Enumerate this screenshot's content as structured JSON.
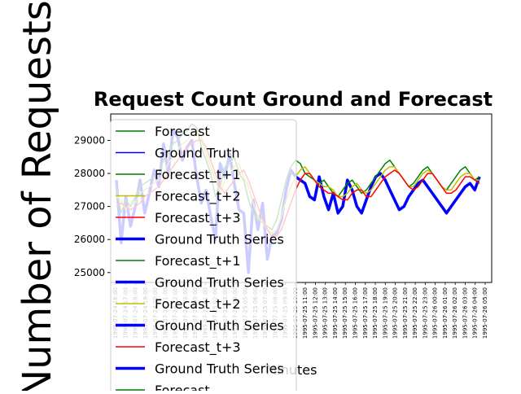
{
  "chart_data": {
    "type": "line",
    "title": "Request Count Ground and Forecast",
    "xlabel": "Minutes",
    "ylabel": "Number of Requests",
    "ylim": [
      24700,
      29800
    ],
    "y_ticks": [
      25000,
      26000,
      27000,
      28000,
      29000
    ],
    "x_tick_labels_note": "dense rotated timestamp labels",
    "x_tick_labels": [
      "1995-07-24 16:00",
      "1995-07-24 17:00",
      "1995-07-24 18:00",
      "1995-07-24 19:00",
      "1995-07-24 20:00",
      "1995-07-24 21:00",
      "1995-07-24 22:00",
      "1995-07-24 23:00",
      "1995-07-25 00:00",
      "1995-07-25 01:00",
      "1995-07-25 02:00",
      "1995-07-25 03:00",
      "1995-07-25 04:00",
      "1995-07-25 05:00",
      "1995-07-25 06:00",
      "1995-07-25 07:00",
      "1995-07-25 08:00",
      "1995-07-25 09:00",
      "1995-07-25 10:00",
      "1995-07-25 11:00",
      "1995-07-25 12:00",
      "1995-07-25 13:00",
      "1995-07-25 14:00",
      "1995-07-25 15:00",
      "1995-07-25 16:00",
      "1995-07-25 17:00",
      "1995-07-25 18:00",
      "1995-07-25 19:00",
      "1995-07-25 20:00",
      "1995-07-25 21:00",
      "1995-07-25 22:00",
      "1995-07-25 23:00",
      "1995-07-26 00:00",
      "1995-07-26 01:00",
      "1995-07-26 02:00",
      "1995-07-26 03:00",
      "1995-07-26 04:00",
      "1995-07-26 05:00"
    ],
    "grid": false,
    "legend_placement": "upper-left, overflowing",
    "legend": [
      {
        "label": "Forecast",
        "color": "#008000",
        "width": 1.5
      },
      {
        "label": "Ground Truth",
        "color": "#0000ff",
        "width": 1.5
      },
      {
        "label": "Forecast_t+1",
        "color": "#008000",
        "width": 1.5
      },
      {
        "label": "Forecast_t+2",
        "color": "#bfbf00",
        "width": 1.5
      },
      {
        "label": "Forecast_t+3",
        "color": "#ff0000",
        "width": 1.5
      },
      {
        "label": "Ground Truth Series",
        "color": "#0000ff",
        "width": 3.5
      },
      {
        "label": "Forecast_t+1",
        "color": "#008000",
        "width": 1.5
      },
      {
        "label": "Ground Truth Series",
        "color": "#0000ff",
        "width": 3.5
      },
      {
        "label": "Forecast_t+2",
        "color": "#bfbf00",
        "width": 1.5
      },
      {
        "label": "Ground Truth Series",
        "color": "#0000ff",
        "width": 3.5
      },
      {
        "label": "Forecast_t+3",
        "color": "#ff0000",
        "width": 1.5
      },
      {
        "label": "Ground Truth Series",
        "color": "#0000ff",
        "width": 3.5
      },
      {
        "label": "Forecast",
        "color": "#008000",
        "width": 1.5
      }
    ],
    "x": [
      0,
      1,
      2,
      3,
      4,
      5,
      6,
      7,
      8,
      9,
      10,
      11,
      12,
      13,
      14,
      15,
      16,
      17,
      18,
      19,
      20,
      21,
      22,
      23,
      24,
      25,
      26,
      27,
      28,
      29,
      30,
      31,
      32,
      33,
      34,
      35,
      36,
      37,
      38,
      39,
      40,
      41,
      42,
      43,
      44,
      45,
      46,
      47,
      48,
      49,
      50,
      51,
      52,
      53,
      54,
      55,
      56,
      57,
      58,
      59,
      60,
      61,
      62,
      63,
      64,
      65,
      66,
      67,
      68,
      69,
      70,
      71,
      72,
      73,
      74,
      75,
      76,
      77
    ],
    "series": [
      {
        "name": "Ground Truth Series",
        "color": "#0000ff",
        "width": 3.5,
        "values": [
          27800,
          25900,
          27300,
          26400,
          27000,
          27800,
          26800,
          27400,
          28100,
          27600,
          28900,
          28000,
          29300,
          29100,
          28400,
          28800,
          29000,
          27900,
          27100,
          27500,
          26700,
          26000,
          28300,
          27900,
          28600,
          27700,
          26900,
          26800,
          25000,
          27200,
          26300,
          27100,
          25400,
          26100,
          26200,
          26600,
          27500,
          28100,
          27900,
          27800,
          27700,
          27300,
          27200,
          27900,
          27300,
          26900,
          27400,
          26800,
          27000,
          27800,
          27500,
          27000,
          26800,
          27200,
          27600,
          27900,
          28000,
          27800,
          27500,
          27200,
          26900,
          27000,
          27300,
          27500,
          27700,
          27800,
          27600,
          27400,
          27200,
          27000,
          26800,
          27000,
          27200,
          27400,
          27600,
          27700,
          27500,
          27900
        ]
      },
      {
        "name": "Forecast_t+1",
        "color": "#008000",
        "width": 1.5,
        "values": [
          27600,
          26800,
          27200,
          27000,
          27300,
          27600,
          27700,
          27800,
          27900,
          28000,
          28400,
          28600,
          28900,
          29000,
          29200,
          29300,
          29500,
          29400,
          28800,
          28400,
          28000,
          27300,
          27600,
          28200,
          28300,
          28500,
          28000,
          27800,
          27200,
          26800,
          26600,
          26500,
          26400,
          26300,
          26600,
          27200,
          27800,
          28200,
          28400,
          28300,
          28000,
          27900,
          27800,
          27700,
          27800,
          27600,
          27400,
          27300,
          27500,
          27700,
          27800,
          27600,
          27400,
          27500,
          27700,
          27900,
          28100,
          28300,
          28400,
          28200,
          28000,
          27800,
          27600,
          27700,
          27900,
          28100,
          28200,
          28000,
          27800,
          27600,
          27500,
          27700,
          27900,
          28100,
          28200,
          28000,
          27800,
          27900
        ]
      },
      {
        "name": "Forecast_t+2",
        "color": "#bfbf00",
        "width": 1.5,
        "values": [
          27300,
          27200,
          26900,
          27100,
          27100,
          27400,
          27500,
          27600,
          27700,
          27800,
          28000,
          28300,
          28500,
          28700,
          28900,
          29000,
          29200,
          29300,
          29100,
          28600,
          28200,
          27800,
          27400,
          27800,
          28000,
          28200,
          28300,
          27900,
          27600,
          27100,
          26700,
          26500,
          26300,
          26200,
          26300,
          26700,
          27200,
          27600,
          27900,
          28100,
          28200,
          28000,
          27800,
          27700,
          27600,
          27600,
          27500,
          27300,
          27300,
          27400,
          27600,
          27700,
          27500,
          27400,
          27500,
          27700,
          27900,
          28100,
          28200,
          28200,
          28000,
          27800,
          27600,
          27600,
          27800,
          28000,
          28100,
          28000,
          27800,
          27600,
          27500,
          27500,
          27700,
          27900,
          28000,
          28000,
          27800,
          27800
        ]
      },
      {
        "name": "Forecast_t+3",
        "color": "#ff0000",
        "width": 1.5,
        "values": [
          27000,
          27100,
          27000,
          26900,
          27000,
          27100,
          27300,
          27400,
          27500,
          27600,
          27800,
          28000,
          28200,
          28400,
          28600,
          28800,
          28900,
          29000,
          29000,
          28800,
          28400,
          28000,
          27600,
          27400,
          27600,
          27800,
          28000,
          28100,
          27800,
          27400,
          27000,
          26600,
          26300,
          26100,
          26100,
          26300,
          26700,
          27100,
          27500,
          27800,
          28000,
          28000,
          27800,
          27600,
          27500,
          27400,
          27400,
          27300,
          27200,
          27200,
          27400,
          27500,
          27500,
          27300,
          27300,
          27500,
          27700,
          27900,
          28000,
          28100,
          28000,
          27800,
          27600,
          27500,
          27600,
          27800,
          28000,
          28000,
          27800,
          27600,
          27400,
          27400,
          27500,
          27700,
          27900,
          27900,
          27800,
          27700
        ]
      }
    ]
  }
}
